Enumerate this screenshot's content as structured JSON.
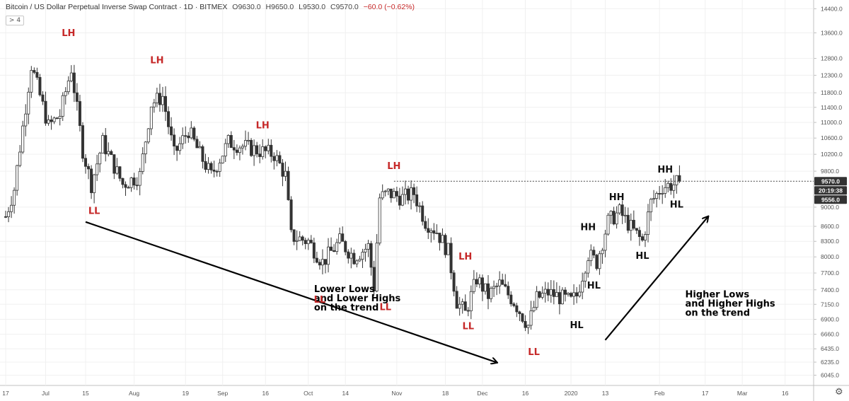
{
  "header": {
    "symbol": "Bitcoin / US Dollar Perpetual Inverse Swap Contract · 1D · BITMEX",
    "open": "O9630.0",
    "high": "H9650.0",
    "low": "L9530.0",
    "close": "C9570.0",
    "change": "−60.0 (−0.62%)",
    "collapse_label": "> 4"
  },
  "colors": {
    "bull": "#ffffff",
    "bear": "#333333",
    "wick": "#333333",
    "bearish_label": "#c62828",
    "bullish_label": "#111111",
    "grid": "#f0f0f0",
    "axis_text": "#555555"
  },
  "settings_icon": "gear-icon",
  "chart_data": {
    "type": "candlestick",
    "price_axis": {
      "scale": "log",
      "ylim": [
        5900,
        14700
      ],
      "ticks": [
        "14400.0",
        "13600.0",
        "12800.0",
        "12300.0",
        "11800.0",
        "11400.0",
        "11000.0",
        "10600.0",
        "10200.0",
        "9800.0",
        "9000.0",
        "8600.0",
        "8300.0",
        "8000.0",
        "7700.0",
        "7400.0",
        "7150.0",
        "6900.0",
        "6660.0",
        "6435.0",
        "6235.0",
        "6045.0"
      ]
    },
    "time_axis": {
      "range": [
        "2019-06-17",
        "2020-03-24"
      ],
      "ticks": [
        {
          "date": "2019-06-17",
          "label": "17"
        },
        {
          "date": "2019-07-01",
          "label": "Jul"
        },
        {
          "date": "2019-07-15",
          "label": "15"
        },
        {
          "date": "2019-08-01",
          "label": "Aug"
        },
        {
          "date": "2019-08-19",
          "label": "19"
        },
        {
          "date": "2019-09-01",
          "label": "Sep"
        },
        {
          "date": "2019-09-16",
          "label": "16"
        },
        {
          "date": "2019-10-01",
          "label": "Oct"
        },
        {
          "date": "2019-10-14",
          "label": "14"
        },
        {
          "date": "2019-11-01",
          "label": "Nov"
        },
        {
          "date": "2019-11-18",
          "label": "18"
        },
        {
          "date": "2019-12-01",
          "label": "Dec"
        },
        {
          "date": "2019-12-16",
          "label": "16"
        },
        {
          "date": "2020-01-01",
          "label": "2020"
        },
        {
          "date": "2020-01-13",
          "label": "13"
        },
        {
          "date": "2020-02-01",
          "label": "Feb"
        },
        {
          "date": "2020-02-17",
          "label": "17"
        },
        {
          "date": "2020-03-01",
          "label": "Mar"
        },
        {
          "date": "2020-03-16",
          "label": "16"
        }
      ]
    },
    "key_points": [
      {
        "date": "2019-06-17",
        "price": 8800
      },
      {
        "date": "2019-06-20",
        "price": 9400
      },
      {
        "date": "2019-06-26",
        "price": 12600
      },
      {
        "date": "2019-07-02",
        "price": 10900
      },
      {
        "date": "2019-07-06",
        "price": 11200
      },
      {
        "date": "2019-07-10",
        "price": 12500
      },
      {
        "date": "2019-07-14",
        "price": 10300
      },
      {
        "date": "2019-07-17",
        "price": 9500
      },
      {
        "date": "2019-07-21",
        "price": 10500
      },
      {
        "date": "2019-07-28",
        "price": 9500
      },
      {
        "date": "2019-08-03",
        "price": 9700
      },
      {
        "date": "2019-08-07",
        "price": 11500
      },
      {
        "date": "2019-08-11",
        "price": 11700
      },
      {
        "date": "2019-08-15",
        "price": 10200
      },
      {
        "date": "2019-08-20",
        "price": 10800
      },
      {
        "date": "2019-08-24",
        "price": 10200
      },
      {
        "date": "2019-08-28",
        "price": 9700
      },
      {
        "date": "2019-09-03",
        "price": 10500
      },
      {
        "date": "2019-09-08",
        "price": 10400
      },
      {
        "date": "2019-09-13",
        "price": 10300
      },
      {
        "date": "2019-09-19",
        "price": 10200
      },
      {
        "date": "2019-09-23",
        "price": 9700
      },
      {
        "date": "2019-09-25",
        "price": 8400
      },
      {
        "date": "2019-10-01",
        "price": 8300
      },
      {
        "date": "2019-10-06",
        "price": 7900
      },
      {
        "date": "2019-10-12",
        "price": 8300
      },
      {
        "date": "2019-10-17",
        "price": 8000
      },
      {
        "date": "2019-10-22",
        "price": 8200
      },
      {
        "date": "2019-10-24",
        "price": 7450
      },
      {
        "date": "2019-10-26",
        "price": 9200
      },
      {
        "date": "2019-10-29",
        "price": 9300
      },
      {
        "date": "2019-11-03",
        "price": 9200
      },
      {
        "date": "2019-11-07",
        "price": 9300
      },
      {
        "date": "2019-11-11",
        "price": 8700
      },
      {
        "date": "2019-11-15",
        "price": 8500
      },
      {
        "date": "2019-11-19",
        "price": 8100
      },
      {
        "date": "2019-11-22",
        "price": 7200
      },
      {
        "date": "2019-11-25",
        "price": 7000
      },
      {
        "date": "2019-11-29",
        "price": 7600
      },
      {
        "date": "2019-12-03",
        "price": 7300
      },
      {
        "date": "2019-12-07",
        "price": 7500
      },
      {
        "date": "2019-12-12",
        "price": 7200
      },
      {
        "date": "2019-12-17",
        "price": 6800
      },
      {
        "date": "2019-12-20",
        "price": 7250
      },
      {
        "date": "2019-12-24",
        "price": 7350
      },
      {
        "date": "2020-01-01",
        "price": 7200
      },
      {
        "date": "2020-01-03",
        "price": 7300
      },
      {
        "date": "2020-01-07",
        "price": 8050
      },
      {
        "date": "2020-01-10",
        "price": 7900
      },
      {
        "date": "2020-01-14",
        "price": 8700
      },
      {
        "date": "2020-01-18",
        "price": 8900
      },
      {
        "date": "2020-01-23",
        "price": 8500
      },
      {
        "date": "2020-01-26",
        "price": 8300
      },
      {
        "date": "2020-01-29",
        "price": 9100
      },
      {
        "date": "2020-02-02",
        "price": 9450
      },
      {
        "date": "2020-02-06",
        "price": 9500
      },
      {
        "date": "2020-02-08",
        "price": 9570
      }
    ],
    "current_price": {
      "value": 9570.0,
      "label": "9570.0",
      "countdown": "20:19:38"
    },
    "extra_price_tag": "9556.0",
    "annotations": [
      {
        "text": "LH",
        "date": "2019-07-09",
        "price": 13500,
        "kind": "bearish"
      },
      {
        "text": "LL",
        "date": "2019-07-18",
        "price": 8860,
        "kind": "bearish"
      },
      {
        "text": "LH",
        "date": "2019-08-09",
        "price": 12650,
        "kind": "bearish"
      },
      {
        "text": "LH",
        "date": "2019-09-15",
        "price": 10850,
        "kind": "bearish"
      },
      {
        "text": "LL",
        "date": "2019-10-05",
        "price": 7180,
        "kind": "bearish"
      },
      {
        "text": "LH",
        "date": "2019-10-31",
        "price": 9850,
        "kind": "bearish"
      },
      {
        "text": "LL",
        "date": "2019-10-28",
        "price": 7050,
        "kind": "bearish"
      },
      {
        "text": "LH",
        "date": "2019-11-25",
        "price": 7950,
        "kind": "bearish"
      },
      {
        "text": "LL",
        "date": "2019-11-26",
        "price": 6740,
        "kind": "bearish"
      },
      {
        "text": "LL",
        "date": "2019-12-19",
        "price": 6340,
        "kind": "bearish"
      },
      {
        "text": "HL",
        "date": "2020-01-03",
        "price": 6760,
        "kind": "bullish"
      },
      {
        "text": "HH",
        "date": "2020-01-07",
        "price": 8520,
        "kind": "bullish"
      },
      {
        "text": "HL",
        "date": "2020-01-09",
        "price": 7420,
        "kind": "bullish"
      },
      {
        "text": "HH",
        "date": "2020-01-17",
        "price": 9150,
        "kind": "bullish"
      },
      {
        "text": "HL",
        "date": "2020-01-26",
        "price": 7960,
        "kind": "bullish"
      },
      {
        "text": "HH",
        "date": "2020-02-03",
        "price": 9770,
        "kind": "bullish"
      },
      {
        "text": "HL",
        "date": "2020-02-07",
        "price": 8990,
        "kind": "bullish"
      }
    ],
    "trend_notes": [
      {
        "lines": [
          "Lower Lows",
          "and Lower Highs",
          "on the trend"
        ],
        "date": "2019-10-03",
        "price": 7360
      },
      {
        "lines": [
          "Higher Lows",
          "and Higher Highs",
          "on the trend"
        ],
        "date": "2020-02-10",
        "price": 7270
      }
    ],
    "arrows": [
      {
        "from": {
          "date": "2019-07-15",
          "price": 8690
        },
        "to": {
          "date": "2019-12-06",
          "price": 6230
        }
      },
      {
        "from": {
          "date": "2020-01-13",
          "price": 6570
        },
        "to": {
          "date": "2020-02-18",
          "price": 8800
        }
      }
    ],
    "hline": {
      "price": 9570.0,
      "from_date": "2019-10-31",
      "style": "dotted"
    }
  }
}
